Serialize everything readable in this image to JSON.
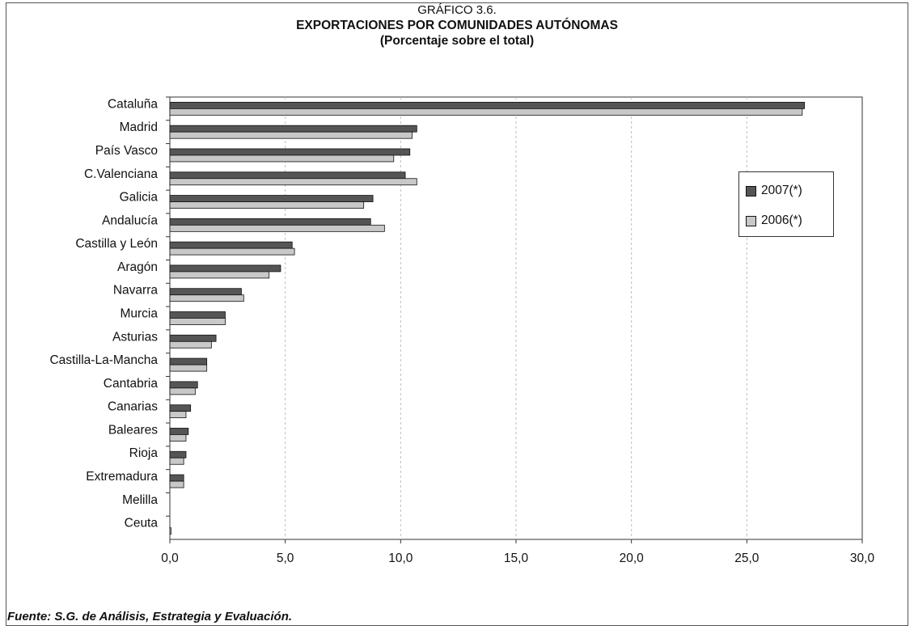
{
  "header": {
    "pre_title": "GRÁFICO 3.6.",
    "title": "EXPORTACIONES POR COMUNIDADES AUTÓNOMAS",
    "subtitle": "(Porcentaje sobre el total)"
  },
  "source": "Fuente: S.G. de Análisis, Estrategia y Evaluación.",
  "colors": {
    "series_2007": "#555555",
    "series_2006": "#c8c8c8",
    "grid": "#bdbdbd"
  },
  "chart_data": {
    "type": "bar",
    "orientation": "horizontal",
    "categories": [
      "Cataluña",
      "Madrid",
      "País Vasco",
      "C.Valenciana",
      "Galicia",
      "Andalucía",
      "Castilla y León",
      "Aragón",
      "Navarra",
      "Murcia",
      "Asturias",
      "Castilla-La-Mancha",
      "Cantabria",
      "Canarias",
      "Baleares",
      "Rioja",
      "Extremadura",
      "Melilla",
      "Ceuta"
    ],
    "series": [
      {
        "name": "2007(*)",
        "values": [
          27.5,
          10.7,
          10.4,
          10.2,
          8.8,
          8.7,
          5.3,
          4.8,
          3.1,
          2.4,
          2.0,
          1.6,
          1.2,
          0.9,
          0.8,
          0.7,
          0.6,
          0.0,
          0.0
        ]
      },
      {
        "name": "2006(*)",
        "values": [
          27.4,
          10.5,
          9.7,
          10.7,
          8.4,
          9.3,
          5.4,
          4.3,
          3.2,
          2.4,
          1.8,
          1.6,
          1.1,
          0.7,
          0.7,
          0.6,
          0.6,
          0.0,
          0.05
        ]
      }
    ],
    "xlim": [
      0,
      30
    ],
    "xticks": [
      "0,0",
      "5,0",
      "10,0",
      "15,0",
      "20,0",
      "25,0",
      "30,0"
    ],
    "grid": true,
    "legend": "right"
  }
}
